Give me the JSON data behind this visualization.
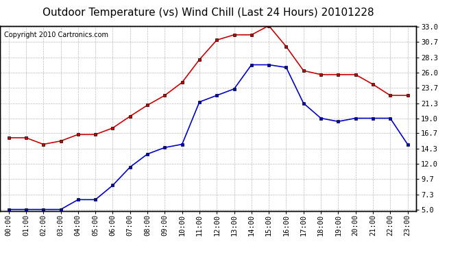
{
  "title": "Outdoor Temperature (vs) Wind Chill (Last 24 Hours) 20101228",
  "copyright": "Copyright 2010 Cartronics.com",
  "hours": [
    "00:00",
    "01:00",
    "02:00",
    "03:00",
    "04:00",
    "05:00",
    "06:00",
    "07:00",
    "08:00",
    "09:00",
    "10:00",
    "11:00",
    "12:00",
    "13:00",
    "14:00",
    "15:00",
    "16:00",
    "17:00",
    "18:00",
    "19:00",
    "20:00",
    "21:00",
    "22:00",
    "23:00"
  ],
  "temp": [
    16.0,
    16.0,
    15.0,
    15.5,
    16.5,
    16.5,
    17.5,
    19.3,
    21.0,
    22.5,
    24.5,
    28.0,
    31.0,
    31.8,
    31.8,
    33.2,
    30.0,
    26.3,
    25.7,
    25.7,
    25.7,
    24.2,
    22.5,
    22.5
  ],
  "windchill": [
    5.0,
    5.0,
    5.0,
    5.0,
    6.5,
    6.5,
    8.7,
    11.5,
    13.5,
    14.5,
    15.0,
    21.5,
    22.5,
    23.5,
    27.2,
    27.2,
    26.8,
    21.3,
    19.0,
    18.5,
    19.0,
    19.0,
    19.0,
    15.0
  ],
  "ylim_min": 5.0,
  "ylim_max": 33.0,
  "yticks": [
    5.0,
    7.3,
    9.7,
    12.0,
    14.3,
    16.7,
    19.0,
    21.3,
    23.7,
    26.0,
    28.3,
    30.7,
    33.0
  ],
  "temp_color": "#cc0000",
  "windchill_color": "#0000cc",
  "bg_color": "#ffffff",
  "grid_color": "#aaaaaa",
  "title_fontsize": 11,
  "copyright_fontsize": 7,
  "tick_fontsize": 7.5,
  "ytick_fontsize": 7.5
}
